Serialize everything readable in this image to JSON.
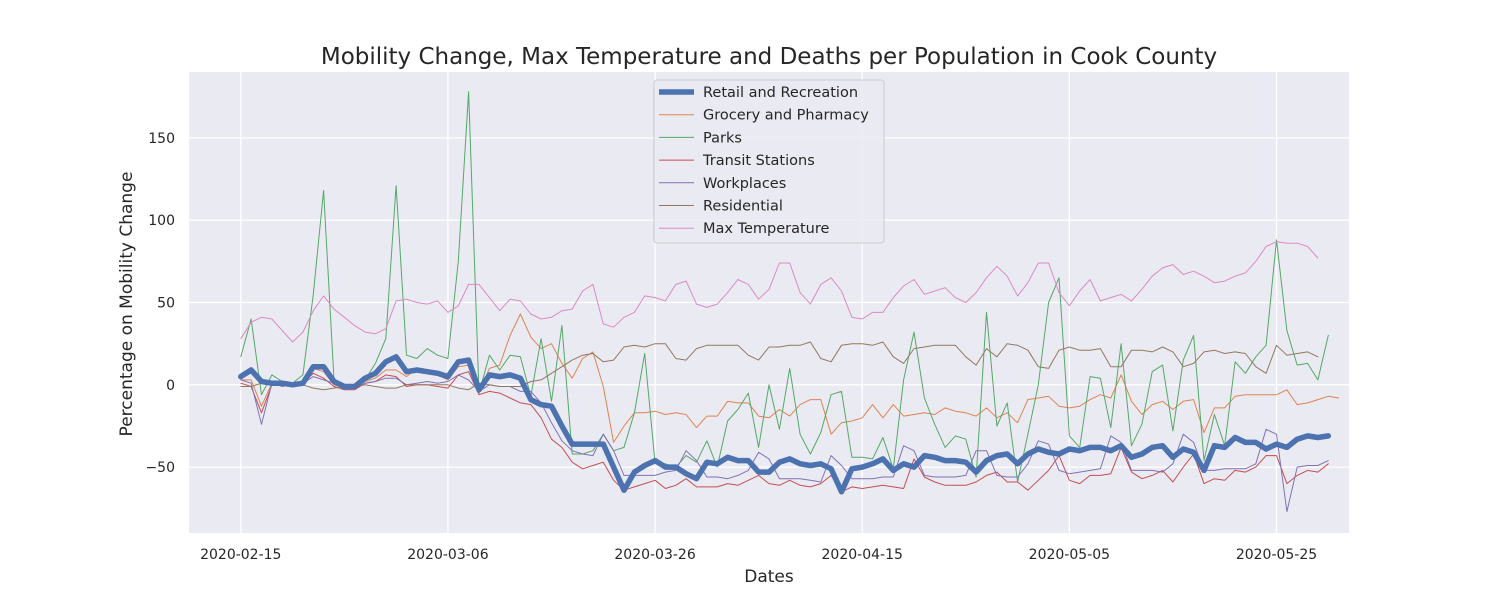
{
  "chart_data": {
    "type": "line",
    "title": "Mobility Change, Max Temperature and Deaths per Population in Cook County",
    "xlabel": "Dates",
    "ylabel": "Percentage on Mobility Change",
    "start_date": "2020-02-15",
    "xlim": [
      "2020-02-10",
      "2020-06-01"
    ],
    "ylim": [
      -90,
      190
    ],
    "x_ticks": [
      "2020-02-15",
      "2020-03-06",
      "2020-03-26",
      "2020-04-15",
      "2020-05-05",
      "2020-05-25"
    ],
    "y_ticks": [
      -50,
      0,
      50,
      100,
      150
    ],
    "grid": true,
    "legend_position": "top-center",
    "series": [
      {
        "name": "Retail and Recreation",
        "color": "#4c72b0",
        "width": 5.5,
        "values": [
          5,
          9,
          2,
          1,
          1,
          0,
          1,
          11,
          11,
          2,
          -1,
          -1,
          4,
          7,
          14,
          17,
          8,
          9,
          8,
          7,
          5,
          14,
          15,
          -3,
          6,
          5,
          6,
          4,
          -9,
          -12,
          -13,
          -25,
          -36,
          -36,
          -36,
          -36,
          -50,
          -64,
          -53,
          -49,
          -46,
          -50,
          -50,
          -54,
          -57,
          -47,
          -48,
          -44,
          -46,
          -46,
          -53,
          -53,
          -47,
          -45,
          -48,
          -49,
          -48,
          -51,
          -65,
          -51,
          -50,
          -48,
          -45,
          -52,
          -48,
          -50,
          -43,
          -44,
          -46,
          -46,
          -47,
          -53,
          -46,
          -43,
          -42,
          -48,
          -42,
          -39,
          -41,
          -42,
          -39,
          -40,
          -38,
          -38,
          -40,
          -37,
          -44,
          -42,
          -38,
          -37,
          -44,
          -39,
          -41,
          -52,
          -37,
          -38,
          -32,
          -35,
          -35,
          -39,
          -36,
          -38,
          -33,
          -31,
          -32,
          -31
        ]
      },
      {
        "name": "Grocery and Pharmacy",
        "color": "#dd8452",
        "width": 1,
        "values": [
          3,
          3,
          -13,
          1,
          0,
          -1,
          1,
          10,
          8,
          0,
          -2,
          -2,
          2,
          4,
          9,
          9,
          5,
          10,
          9,
          6,
          3,
          11,
          12,
          -5,
          10,
          12,
          30,
          43,
          29,
          22,
          25,
          13,
          4,
          16,
          20,
          -1,
          -35,
          -25,
          -17,
          -17,
          -16,
          -18,
          -17,
          -18,
          -26,
          -19,
          -19,
          -10,
          -11,
          -11,
          -19,
          -20,
          -15,
          -19,
          -12,
          -9,
          -9,
          -30,
          -23,
          -22,
          -20,
          -12,
          -20,
          -12,
          -19,
          -18,
          -17,
          -18,
          -14,
          -16,
          -17,
          -19,
          -14,
          -20,
          -17,
          -23,
          -9,
          -8,
          -7,
          -13,
          -14,
          -13,
          -9,
          -6,
          -8,
          6,
          -10,
          -18,
          -12,
          -10,
          -15,
          -10,
          -9,
          -29,
          -14,
          -14,
          -7,
          -6,
          -6,
          -6,
          -6,
          -3,
          -12,
          -11,
          -9,
          -7,
          -8
        ]
      },
      {
        "name": "Parks",
        "color": "#55a868",
        "width": 1,
        "values": [
          17,
          40,
          -6,
          6,
          2,
          1,
          6,
          55,
          118,
          3,
          0,
          -1,
          3,
          13,
          28,
          121,
          18,
          16,
          22,
          18,
          16,
          75,
          178,
          -5,
          18,
          9,
          18,
          17,
          -7,
          28,
          -10,
          36,
          -42,
          -42,
          -40,
          -30,
          -40,
          -38,
          -17,
          19,
          -48,
          -48,
          -50,
          -43,
          -47,
          -34,
          -50,
          -22,
          -15,
          -5,
          -38,
          0,
          -27,
          10,
          -30,
          -42,
          -29,
          -6,
          -4,
          -44,
          -44,
          -45,
          -32,
          -51,
          3,
          32,
          -8,
          -24,
          -38,
          -31,
          -33,
          -56,
          44,
          -25,
          -11,
          -59,
          -30,
          0,
          50,
          65,
          -31,
          -38,
          5,
          4,
          -26,
          25,
          -37,
          -24,
          8,
          12,
          -28,
          15,
          30,
          -46,
          -18,
          -37,
          14,
          7,
          17,
          24,
          88,
          33,
          12,
          13,
          3,
          30
        ]
      },
      {
        "name": "Transit Stations",
        "color": "#c44e52",
        "width": 1,
        "values": [
          1,
          -1,
          -17,
          0,
          0,
          -1,
          1,
          7,
          4,
          -1,
          -3,
          -3,
          1,
          2,
          6,
          5,
          -1,
          0,
          0,
          -1,
          -2,
          6,
          8,
          -6,
          -4,
          -5,
          -8,
          -11,
          -12,
          -20,
          -33,
          -38,
          -47,
          -51,
          -49,
          -47,
          -58,
          -64,
          -62,
          -60,
          -58,
          -63,
          -61,
          -57,
          -62,
          -62,
          -62,
          -60,
          -61,
          -58,
          -55,
          -60,
          -61,
          -58,
          -61,
          -62,
          -60,
          -55,
          -65,
          -62,
          -63,
          -62,
          -61,
          -62,
          -63,
          -45,
          -56,
          -59,
          -61,
          -61,
          -61,
          -59,
          -55,
          -53,
          -59,
          -59,
          -64,
          -58,
          -52,
          -43,
          -58,
          -60,
          -55,
          -55,
          -54,
          -38,
          -53,
          -57,
          -55,
          -52,
          -59,
          -50,
          -42,
          -60,
          -57,
          -58,
          -52,
          -53,
          -50,
          -43,
          -43,
          -60,
          -55,
          -52,
          -53,
          -48
        ]
      },
      {
        "name": "Workplaces",
        "color": "#8172b3",
        "width": 1,
        "values": [
          3,
          1,
          -24,
          1,
          -1,
          0,
          1,
          5,
          3,
          1,
          -3,
          -2,
          1,
          2,
          4,
          4,
          0,
          1,
          2,
          1,
          2,
          6,
          3,
          -4,
          0,
          -1,
          -1,
          -4,
          -4,
          -11,
          -23,
          -34,
          -40,
          -42,
          -43,
          -30,
          -40,
          -55,
          -55,
          -55,
          -55,
          -53,
          -52,
          -40,
          -46,
          -56,
          -56,
          -57,
          -55,
          -52,
          -41,
          -45,
          -57,
          -57,
          -57,
          -58,
          -59,
          -43,
          -49,
          -57,
          -57,
          -57,
          -56,
          -56,
          -37,
          -40,
          -55,
          -56,
          -56,
          -56,
          -55,
          -40,
          -40,
          -55,
          -56,
          -56,
          -48,
          -34,
          -36,
          -52,
          -54,
          -53,
          -52,
          -51,
          -31,
          -35,
          -52,
          -52,
          -52,
          -53,
          -48,
          -30,
          -35,
          -52,
          -52,
          -51,
          -51,
          -51,
          -48,
          -27,
          -30,
          -77,
          -50,
          -49,
          -49,
          -46
        ]
      },
      {
        "name": "Residential",
        "color": "#937860",
        "width": 1,
        "values": [
          -1,
          -1,
          1,
          0,
          0,
          0,
          0,
          -2,
          -3,
          -2,
          -1,
          -1,
          0,
          -1,
          -2,
          -2,
          0,
          0,
          0,
          0,
          0,
          -2,
          -3,
          1,
          0,
          -1,
          -1,
          -1,
          2,
          3,
          7,
          11,
          15,
          18,
          19,
          14,
          15,
          23,
          24,
          23,
          25,
          25,
          16,
          15,
          22,
          24,
          24,
          24,
          24,
          18,
          15,
          23,
          23,
          24,
          24,
          26,
          16,
          14,
          24,
          25,
          25,
          24,
          26,
          17,
          13,
          22,
          23,
          24,
          24,
          24,
          17,
          12,
          22,
          17,
          25,
          24,
          21,
          11,
          10,
          21,
          23,
          21,
          21,
          22,
          11,
          11,
          21,
          21,
          20,
          23,
          20,
          11,
          13,
          20,
          21,
          19,
          20,
          19,
          11,
          7,
          24,
          18,
          19,
          20,
          17
        ]
      },
      {
        "name": "Max Temperature",
        "color": "#da8bc3",
        "width": 1,
        "values": [
          28,
          38,
          41,
          40,
          33,
          26,
          32,
          45,
          54,
          46,
          41,
          36,
          32,
          31,
          34,
          51,
          52,
          50,
          49,
          51,
          44,
          48,
          61,
          61,
          53,
          45,
          52,
          51,
          43,
          40,
          41,
          45,
          46,
          57,
          61,
          37,
          35,
          41,
          44,
          54,
          53,
          51,
          61,
          63,
          49,
          47,
          49,
          56,
          64,
          61,
          52,
          58,
          74,
          74,
          56,
          49,
          61,
          65,
          57,
          41,
          40,
          44,
          44,
          53,
          60,
          64,
          55,
          57,
          59,
          53,
          50,
          56,
          65,
          72,
          66,
          54,
          62,
          74,
          74,
          56,
          48,
          57,
          64,
          51,
          53,
          55,
          51,
          58,
          66,
          71,
          73,
          67,
          69,
          66,
          62,
          63,
          66,
          68,
          75,
          84,
          87,
          86,
          86,
          84,
          77
        ]
      }
    ]
  }
}
